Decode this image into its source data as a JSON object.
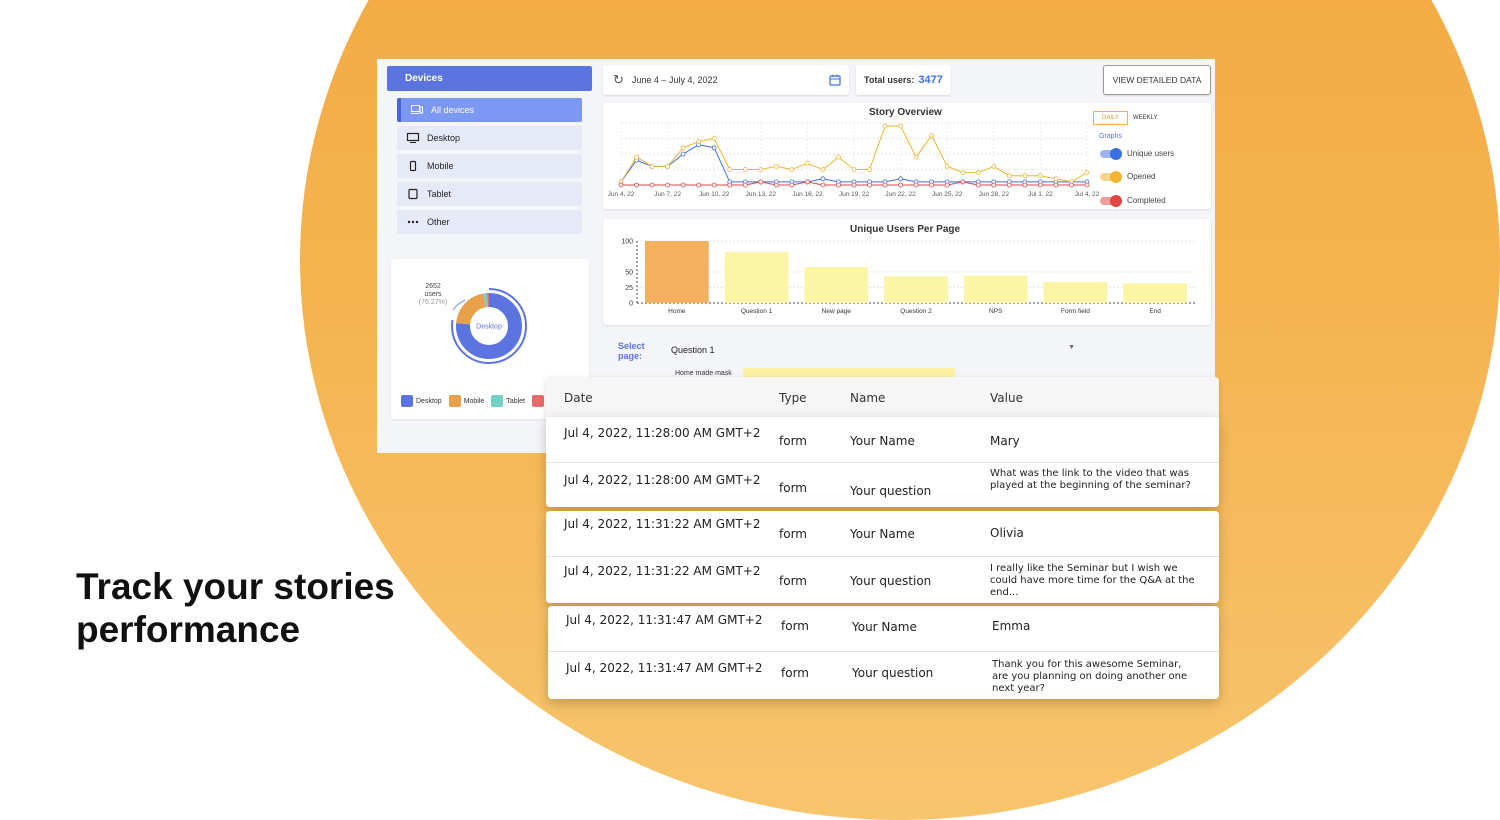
{
  "headline": "Track your stories performance",
  "sidebar": {
    "title": "Devices",
    "items": [
      {
        "label": "All devices",
        "icon": "devices-icon",
        "active": true
      },
      {
        "label": "Desktop",
        "icon": "desktop-icon",
        "active": false
      },
      {
        "label": "Mobile",
        "icon": "mobile-icon",
        "active": false
      },
      {
        "label": "Tablet",
        "icon": "tablet-icon",
        "active": false
      },
      {
        "label": "Other",
        "icon": "more-icon",
        "active": false
      }
    ]
  },
  "donut": {
    "callout_value": "2652",
    "callout_unit": "users",
    "callout_pct": "(76.27%)",
    "center_label": "Desktop",
    "legend": [
      {
        "label": "Desktop",
        "color": "#5b74e0"
      },
      {
        "label": "Mobile",
        "color": "#e9a04b"
      },
      {
        "label": "Tablet",
        "color": "#74cfc9"
      }
    ],
    "legend_extra_color": "#e36b6b"
  },
  "toolbar": {
    "date_range": "June 4 – July 4, 2022",
    "total_label": "Total users:",
    "total_value": "3477",
    "view_button": "VIEW DETAILED DATA"
  },
  "story_overview": {
    "title": "Story Overview",
    "toggle_daily": "DAILY",
    "toggle_weekly": "WEEKLY",
    "graphs_label": "Graphs",
    "switches": [
      {
        "label": "Unique users",
        "color": "#3b6fe0",
        "track": "#9db6f2"
      },
      {
        "label": "Opened",
        "color": "#f2b533",
        "track": "#f6d58a"
      },
      {
        "label": "Completed",
        "color": "#e04646",
        "track": "#f09a9a"
      }
    ]
  },
  "select_page": {
    "label": "Select page:",
    "value": "Question 1",
    "partial_text": "Home made mask"
  },
  "chart_data": [
    {
      "type": "line",
      "title": "Story Overview",
      "x_ticks": [
        "Jun 4, 22",
        "Jun 7, 22",
        "Jun 10, 22",
        "Jun 13, 22",
        "Jun 16, 22",
        "Jun 19, 22",
        "Jun 22, 22",
        "Jun 25, 22",
        "Jun 28, 22",
        "Jul 1, 22",
        "Jul 4, 22"
      ],
      "series": [
        {
          "name": "Unique users",
          "color": "#3b6fe0",
          "values": [
            1,
            8,
            6,
            6,
            10,
            13,
            12,
            1,
            1,
            1,
            1,
            1,
            1,
            2,
            1,
            1,
            1,
            1,
            2,
            1,
            1,
            1,
            1,
            1,
            1,
            1,
            1,
            1,
            1,
            1,
            1
          ]
        },
        {
          "name": "Opened",
          "color": "#f2b533",
          "values": [
            1,
            9,
            6,
            6,
            12,
            14,
            15,
            5,
            5,
            5,
            6,
            5,
            7,
            5,
            9,
            5,
            5,
            19,
            19,
            9,
            16,
            6,
            4,
            4,
            6,
            3,
            3,
            3,
            2,
            1,
            4
          ]
        },
        {
          "name": "Completed",
          "color": "#e04646",
          "values": [
            0,
            0,
            0,
            0,
            0,
            0,
            0,
            0,
            0,
            1,
            0,
            0,
            1,
            0,
            0,
            0,
            0,
            0,
            0,
            0,
            0,
            0,
            1,
            0,
            0,
            0,
            0,
            0,
            0,
            0,
            0
          ]
        }
      ]
    },
    {
      "type": "bar",
      "title": "Unique Users Per Page",
      "categories": [
        "Home",
        "Question 1",
        "New page",
        "Question 2",
        "NPS",
        "Form field",
        "End"
      ],
      "values": [
        100,
        82,
        58,
        43,
        44,
        34,
        32
      ],
      "colors": [
        "#f4b05f",
        "#fdf5a6",
        "#fdf5a6",
        "#fdf5a6",
        "#fdf5a6",
        "#fdf5a6",
        "#fdf5a6"
      ],
      "y_ticks": [
        "100",
        "50",
        "25",
        "0"
      ],
      "ylim": [
        0,
        100
      ]
    }
  ],
  "table": {
    "headers": {
      "date": "Date",
      "type": "Type",
      "name": "Name",
      "value": "Value"
    },
    "rows": [
      {
        "date": "Jul 4, 2022, 11:28:00 AM GMT+2",
        "type": "form",
        "name": "Your Name",
        "value": "Mary"
      },
      {
        "date": "Jul 4, 2022, 11:28:00 AM GMT+2",
        "type": "form",
        "name": "Your question",
        "value": "What was the link to the video that was played at the beginning of the seminar?"
      },
      {
        "date": "Jul 4, 2022, 11:31:22 AM GMT+2",
        "type": "form",
        "name": "Your Name",
        "value": "Olivia"
      },
      {
        "date": "Jul 4, 2022, 11:31:22 AM GMT+2",
        "type": "form",
        "name": "Your question",
        "value": "I really like the Seminar but I wish we could have more time for the Q&A at the end..."
      },
      {
        "date": "Jul 4, 2022, 11:31:47 AM GMT+2",
        "type": "form",
        "name": "Your Name",
        "value": "Emma"
      },
      {
        "date": "Jul 4, 2022, 11:31:47 AM GMT+2",
        "type": "form",
        "name": "Your question",
        "value": "Thank you for this awesome Seminar, are you planning on doing another one next year?"
      }
    ]
  }
}
